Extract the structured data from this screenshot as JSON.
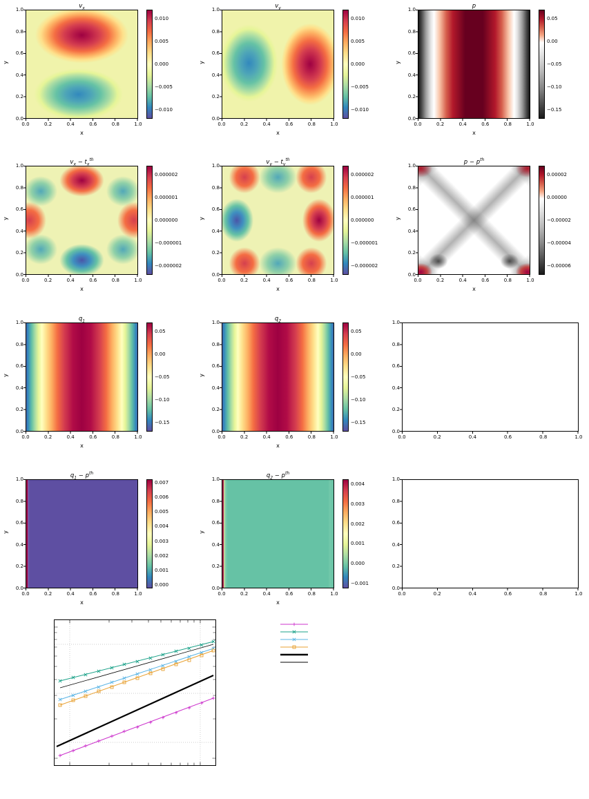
{
  "figure": {
    "description": "grid of matplotlib-style panels: velocity, pressure and auxiliary fields with colorbars, two empty axes, and a log-log convergence plot with legend",
    "background": "#ffffff"
  },
  "axis": {
    "xlabel": "x",
    "ylabel": "y",
    "xticks": [
      "0.0",
      "0.2",
      "0.4",
      "0.6",
      "0.8",
      "1.0"
    ],
    "yticks": [
      "1.0",
      "0.8",
      "0.6",
      "0.4",
      "0.2",
      "0.0"
    ]
  },
  "plots": [
    {
      "name": "vx",
      "title": {
        "p0": "v",
        "p1": "x"
      },
      "cbar_ticks": [
        "0.010",
        "0.005",
        "0.000",
        "−0.005",
        "−0.010"
      ],
      "bg": "background:radial-gradient(ellipse 42% 26% at 50% 23%, #9e0142 0%, #b81b49 18%, #d53e4f 38%, #f46d43 58%, #fdae61 74%, #fee08b 88%, rgba(254,224,139,0) 100%),radial-gradient(ellipse 40% 24% at 47% 78%, #3288bd 0%, #4da4b8 28%, #66c2a5 50%, #abdda4 72%, #e6f598 88%, rgba(230,245,152,0) 100%),linear-gradient(#f0f3ab,#f0f3ab)",
      "cbar_bg": "background:linear-gradient(180deg, #9e0142 0%, #d53e4f 10%, #f46d43 20%, #fdae61 30%, #fee08b 40%, #ffffbf 50%, #e6f598 60%, #abdda4 70%, #66c2a5 80%, #3288bd 90%, #5e4fa2 100%)"
    },
    {
      "name": "vy",
      "title": {
        "p0": "v",
        "p1": "y"
      },
      "cbar_ticks": [
        "0.010",
        "0.005",
        "0.000",
        "−0.005",
        "−0.010"
      ],
      "bg": "background:radial-gradient(ellipse 26% 36% at 24% 49%, #3288bd 0%, #4da4b8 28%, #66c2a5 52%, #abdda4 72%, #e6f598 88%, rgba(230,245,152,0) 100%),radial-gradient(ellipse 26% 38% at 79% 50%, #9e0142 0%, #b81b49 18%, #d53e4f 38%, #f46d43 58%, #fdae61 76%, #fee08b 90%, rgba(254,224,139,0) 100%),linear-gradient(#f0f3ab,#f0f3ab)",
      "cbar_bg": "background:linear-gradient(180deg, #9e0142 0%, #d53e4f 10%, #f46d43 20%, #fdae61 30%, #fee08b 40%, #ffffbf 50%, #e6f598 60%, #abdda4 70%, #66c2a5 80%, #3288bd 90%, #5e4fa2 100%)"
    },
    {
      "name": "p",
      "title": {
        "p0": "p"
      },
      "cbar_ticks": [
        "0.05",
        "0.00",
        "−0.05",
        "−0.10",
        "−0.15"
      ],
      "bg": "background:linear-gradient(90deg, #151515 0%, #4d4d4d 3%, #999999 6.5%, #e2e2e2 11%, #ffffff 14%, #f8c4a8 19%, #d6604d 25%, #b2182b 31%, #67001f 42%, #67001f 58%, #b2182b 69%, #d6604d 75%, #f8c4a8 81%, #ffffff 86%, #e2e2e2 89%, #999999 93.5%, #4d4d4d 97%, #151515 100%)",
      "cbar_bg": "background:linear-gradient(180deg, #67001f 0%, #b2182b 8%, #d6604d 16%, #f4a582 23%, #ffffff 30%, #e0e0e0 42%, #bababa 56%, #878787 72%, #4d4d4d 87%, #1a1a1a 100%)"
    },
    {
      "name": "vx-error",
      "title": {
        "p0": "v",
        "p1": "x",
        "p2": " − ",
        "p3": "t",
        "p4": "x",
        "p5": "th"
      },
      "cbar_ticks": [
        "0.000002",
        "0.000001",
        "0.000000",
        "−0.000001",
        "−0.000002"
      ],
      "bg": "background:radial-gradient(ellipse 20% 15% at 50% 13%, #9e0142 0%, #d53e4f 42%, #f46d43 66%, rgba(253,174,97,0) 100%),radial-gradient(ellipse 20% 15% at 50% 87%, #4a55a8 0%, #3f8fc0 38%, #66c2a5 68%, rgba(171,221,164,0) 100%),radial-gradient(ellipse 15% 17% at 3% 50%, #d5404e 0%, #f46d43 55%, rgba(253,174,97,0) 100%),radial-gradient(ellipse 15% 17% at 97% 50%, #d5404e 0%, #f46d43 55%, rgba(253,174,97,0) 100%),radial-gradient(ellipse 15% 14% at 13% 23%, #52a8b8 0%, #8fd0a8 55%, rgba(171,221,164,0) 100%),radial-gradient(ellipse 15% 14% at 87% 23%, #52a8b8 0%, #8fd0a8 55%, rgba(171,221,164,0) 100%),radial-gradient(ellipse 15% 14% at 13% 77%, #52a8b8 0%, #8fd0a8 55%, rgba(171,221,164,0) 100%),radial-gradient(ellipse 15% 14% at 87% 77%, #52a8b8 0%, #8fd0a8 55%, rgba(171,221,164,0) 100%),linear-gradient(#eef2b4,#eef2b4)",
      "cbar_bg": "background:linear-gradient(180deg, #9e0142 0%, #d53e4f 10%, #f46d43 20%, #fdae61 30%, #fee08b 40%, #ffffbf 50%, #e6f598 60%, #abdda4 70%, #66c2a5 80%, #3288bd 90%, #5e4fa2 100%)"
    },
    {
      "name": "vy-error",
      "title": {
        "p0": "v",
        "p1": "y",
        "p2": " − ",
        "p3": "t",
        "p4": "y",
        "p5": "th"
      },
      "cbar_ticks": [
        "0.000002",
        "0.000001",
        "0.000000",
        "−0.000001",
        "−0.000002"
      ],
      "bg": "background:radial-gradient(ellipse 15% 20% at 13% 50%, #4a55a8 0%, #3f8fc0 38%, #66c2a5 68%, rgba(171,221,164,0) 100%),radial-gradient(ellipse 15% 20% at 87% 50%, #9e0142 0%, #d53e4f 42%, #f46d43 66%, rgba(253,174,97,0) 100%),radial-gradient(ellipse 17% 15% at 50% 10%, #52a8b8 0%, #8fd0a8 55%, rgba(171,221,164,0) 100%),radial-gradient(ellipse 17% 15% at 50% 90%, #52a8b8 0%, #8fd0a8 55%, rgba(171,221,164,0) 100%),radial-gradient(ellipse 14% 15% at 20% 10%, #d5404e 0%, #f46d43 55%, rgba(253,174,97,0) 100%),radial-gradient(ellipse 14% 15% at 80% 10%, #d5404e 0%, #f46d43 55%, rgba(253,174,97,0) 100%),radial-gradient(ellipse 14% 15% at 20% 90%, #d5404e 0%, #f46d43 55%, rgba(253,174,97,0) 100%),radial-gradient(ellipse 14% 15% at 80% 90%, #d5404e 0%, #f46d43 55%, rgba(253,174,97,0) 100%),linear-gradient(#eef2b4,#eef2b4)",
      "cbar_bg": "background:linear-gradient(180deg, #9e0142 0%, #d53e4f 10%, #f46d43 20%, #fdae61 30%, #fee08b 40%, #ffffbf 50%, #e6f598 60%, #abdda4 70%, #66c2a5 80%, #3288bd 90%, #5e4fa2 100%)"
    },
    {
      "name": "p-error",
      "title": {
        "p0": "p",
        "p2": " − ",
        "p3": "p",
        "p5": "th"
      },
      "cbar_ticks": [
        "0.00002",
        "0.00000",
        "−0.00002",
        "−0.00004",
        "−0.00006"
      ],
      "bg": "background:radial-gradient(ellipse 14% 11% at 2% 98%, #9e0142 0%, #c3403f 40%, rgba(195,64,63,0) 75%),radial-gradient(ellipse 14% 11% at 98% 98%, #9e0142 0%, #c3403f 40%, rgba(195,64,63,0) 75%),radial-gradient(ellipse 14% 11% at 2% 2%, #b2182b 0%, rgba(195,64,63,0) 75%),radial-gradient(ellipse 14% 11% at 98% 2%, #b2182b 0%, rgba(195,64,63,0) 75%),radial-gradient(ellipse 12% 10% at 18% 88%, rgba(30,30,30,0.75) 0%, rgba(30,30,30,0) 70%),radial-gradient(ellipse 12% 10% at 82% 88%, rgba(30,30,30,0.75) 0%, rgba(30,30,30,0) 70%),linear-gradient(45deg, rgba(70,70,70,0.5) 0%, rgba(70,70,70,0) 10%, rgba(70,70,70,0) 43%, rgba(70,70,70,0.42) 50%, rgba(70,70,70,0) 57%, rgba(70,70,70,0) 90%, rgba(70,70,70,0.5) 100%),linear-gradient(135deg, rgba(70,70,70,0.5) 0%, rgba(70,70,70,0) 10%, rgba(70,70,70,0) 43%, rgba(70,70,70,0.42) 50%, rgba(70,70,70,0) 57%, rgba(70,70,70,0) 90%, rgba(70,70,70,0.5) 100%),linear-gradient(#ffffff,#ffffff)",
      "cbar_bg": "background:linear-gradient(180deg, #67001f 0%, #b2182b 8%, #d6604d 16%, #f4a582 23%, #ffffff 30%, #e0e0e0 42%, #bababa 56%, #878787 72%, #4d4d4d 87%, #1a1a1a 100%)"
    },
    {
      "name": "q1",
      "title": {
        "p0": "q",
        "p1": "1"
      },
      "cbar_ticks": [
        "0.05",
        "0.00",
        "−0.05",
        "−0.10",
        "−0.15"
      ],
      "bg": "background:linear-gradient(90deg, #4468ae 0%, #3288bd 1.5%, #66c2a5 5%, #abdda4 8%, #e6f598 11%, #ffffbf 14%, #fee08b 18%, #fdae61 23%, #f46d43 28%, #d53e4f 34%, #b10c47 42%, #9e0142 50%, #b10c47 58%, #d53e4f 66%, #f46d43 72%, #fdae61 77%, #fee08b 82%, #ffffbf 86%, #e6f598 89%, #abdda4 92%, #66c2a5 95%, #3288bd 98.5%, #4468ae 100%)",
      "cbar_bg": "background:linear-gradient(180deg, #9e0142 0%, #d53e4f 10%, #f46d43 20%, #fdae61 30%, #fee08b 40%, #ffffbf 50%, #e6f598 60%, #abdda4 70%, #66c2a5 80%, #3288bd 90%, #5e4fa2 100%)"
    },
    {
      "name": "q2",
      "title": {
        "p0": "q",
        "p1": "2"
      },
      "cbar_ticks": [
        "0.05",
        "0.00",
        "−0.05",
        "−0.10",
        "−0.15"
      ],
      "bg": "background:linear-gradient(90deg, #4468ae 0%, #3288bd 1.5%, #66c2a5 5%, #abdda4 8%, #e6f598 11%, #ffffbf 14%, #fee08b 18%, #fdae61 23%, #f46d43 28%, #d53e4f 34%, #b10c47 42%, #9e0142 50%, #b10c47 58%, #d53e4f 66%, #f46d43 72%, #fdae61 77%, #fee08b 82%, #ffffbf 86%, #e6f598 89%, #abdda4 92%, #66c2a5 95%, #3288bd 98.5%, #4468ae 100%)",
      "cbar_bg": "background:linear-gradient(180deg, #9e0142 0%, #d53e4f 10%, #f46d43 20%, #fdae61 30%, #fee08b 40%, #ffffbf 50%, #e6f598 60%, #abdda4 70%, #66c2a5 80%, #3288bd 90%, #5e4fa2 100%)"
    },
    {
      "name": "q1-error",
      "title": {
        "p0": "q",
        "p1": "1",
        "p2": " − ",
        "p3": "p",
        "p5": "th"
      },
      "cbar_ticks": [
        "0.007",
        "0.006",
        "0.005",
        "0.004",
        "0.003",
        "0.002",
        "0.001",
        "0.000"
      ],
      "bg": "background:linear-gradient(90deg, #9e0142 0%, #9e0142 1%, #7a63b0 1.8%, #5e4fa2 3%, #5e4fa2 100%)",
      "cbar_bg": "background:linear-gradient(180deg, #9e0142 0%, #d53e4f 10%, #f46d43 20%, #fdae61 30%, #fee08b 40%, #ffffbf 50%, #e6f598 60%, #abdda4 70%, #66c2a5 80%, #3288bd 90%, #5e4fa2 100%)"
    },
    {
      "name": "q2-error",
      "title": {
        "p0": "q",
        "p1": "2",
        "p2": " − ",
        "p3": "p",
        "p5": "th"
      },
      "cbar_ticks": [
        "0.004",
        "0.003",
        "0.002",
        "0.001",
        "0.000",
        "−0.001"
      ],
      "bg": "background:linear-gradient(90deg, #9e0142 0%, #9e0142 0.8%, #cfe99e 1.6%, #7ecbad 3%, #66c2a5 5%, #66c2a5 95%, #74c9ab 97%, #66c2a5 100%)",
      "cbar_bg": "background:linear-gradient(180deg, #9e0142 0%, #d53e4f 10%, #f46d43 20%, #fdae61 30%, #fee08b 40%, #ffffbf 50%, #e6f598 60%, #abdda4 70%, #66c2a5 80%, #3288bd 90%, #5e4fa2 100%)"
    }
  ],
  "empty_panels": {
    "count": 2,
    "note": "axes frames with 0.0–1.0 ticks on both axes, no data"
  },
  "chart_data": [
    {
      "type": "heatmap",
      "title": "v_x",
      "xlabel": "x",
      "ylabel": "y",
      "xrange": [
        0,
        1
      ],
      "yrange": [
        0,
        1
      ],
      "colormap": "Spectral",
      "colorbar_ticks": [
        0.01,
        0.005,
        0.0,
        -0.005,
        -0.01
      ],
      "features": "positive (dark red) lobe centered near (0.5, 0.75); negative (blue) lobe near (0.47, 0.22); background near zero (pale yellow)"
    },
    {
      "type": "heatmap",
      "title": "v_y",
      "xlabel": "x",
      "ylabel": "y",
      "xrange": [
        0,
        1
      ],
      "yrange": [
        0,
        1
      ],
      "colormap": "Spectral",
      "colorbar_ticks": [
        0.01,
        0.005,
        0.0,
        -0.005,
        -0.01
      ],
      "features": "negative (blue) lobe near (0.25, 0.5); positive (dark red) lobe near (0.78, 0.5); pale yellow background"
    },
    {
      "type": "heatmap",
      "title": "p",
      "xlabel": "x",
      "ylabel": "y",
      "xrange": [
        0,
        1
      ],
      "yrange": [
        0,
        1
      ],
      "colormap": "RdGy",
      "colorbar_ticks": [
        0.05,
        0.0,
        -0.05,
        -0.1,
        -0.15
      ],
      "features": "vertical bands independent of y: black at x=0 and x=1 edges, white near x≈0.13 and x≈0.87, broad dark red plateau across the center"
    },
    {
      "type": "heatmap",
      "title": "v_x - t_x^{th}",
      "xlabel": "x",
      "ylabel": "y",
      "xrange": [
        0,
        1
      ],
      "yrange": [
        0,
        1
      ],
      "colormap": "Spectral",
      "colorbar_ticks": [
        2e-06,
        1e-06,
        0,
        -1e-06,
        -2e-06
      ],
      "features": "3×3 alternating error lobes: dark red top-center, dark blue bottom-center, orange-red mid-left and mid-right, teal lobes toward the four corners"
    },
    {
      "type": "heatmap",
      "title": "v_y - t_y^{th}",
      "xlabel": "x",
      "ylabel": "y",
      "xrange": [
        0,
        1
      ],
      "yrange": [
        0,
        1
      ],
      "colormap": "Spectral",
      "colorbar_ticks": [
        2e-06,
        1e-06,
        0,
        -1e-06,
        -2e-06
      ],
      "features": "transposed pattern: dark blue mid-left, dark red mid-right, teal top-center and bottom-center, orange-red lobes at the corners"
    },
    {
      "type": "heatmap",
      "title": "p - p^{th}",
      "xlabel": "x",
      "ylabel": "y",
      "xrange": [
        0,
        1
      ],
      "yrange": [
        0,
        1
      ],
      "colormap": "RdGy",
      "colorbar_ticks": [
        2e-05,
        0,
        -2e-05,
        -4e-05,
        -6e-05
      ],
      "features": "white field with a dark gray X along the diagonals, red lobes at the four corners, darker spots near the bottom corners"
    },
    {
      "type": "heatmap",
      "title": "q_1",
      "xlabel": "x",
      "ylabel": "y",
      "xrange": [
        0,
        1
      ],
      "yrange": [
        0,
        1
      ],
      "colormap": "Spectral",
      "colorbar_ticks": [
        0.05,
        0.0,
        -0.05,
        -0.1,
        -0.15
      ],
      "features": "vertical bands: blue at edges through green/yellow/orange to a broad dark red center"
    },
    {
      "type": "heatmap",
      "title": "q_2",
      "xlabel": "x",
      "ylabel": "y",
      "xrange": [
        0,
        1
      ],
      "yrange": [
        0,
        1
      ],
      "colormap": "Spectral",
      "colorbar_ticks": [
        0.05,
        0.0,
        -0.05,
        -0.1,
        -0.15
      ],
      "features": "vertical bands: blue at edges through green/yellow/orange to a broad dark red center"
    },
    {
      "type": "heatmap",
      "title": "q_1 - p^{th}",
      "xlabel": "x",
      "ylabel": "y",
      "xrange": [
        0,
        1
      ],
      "yrange": [
        0,
        1
      ],
      "colormap": "Spectral",
      "colorbar_ticks": [
        0.007,
        0.006,
        0.005,
        0.004,
        0.003,
        0.002,
        0.001,
        0.0
      ],
      "features": "uniform purple field (value near 0) with a thin dark red stripe at x=0"
    },
    {
      "type": "heatmap",
      "title": "q_2 - p^{th}",
      "xlabel": "x",
      "ylabel": "y",
      "xrange": [
        0,
        1
      ],
      "yrange": [
        0,
        1
      ],
      "colormap": "Spectral",
      "colorbar_ticks": [
        0.004,
        0.003,
        0.002,
        0.001,
        0.0,
        -0.001
      ],
      "features": "uniform teal-green field with a thin red stripe at x=0 and faint lighter bands near both edges"
    },
    {
      "type": "line",
      "title": "",
      "xscale": "log",
      "yscale": "log",
      "grid": "dotted",
      "tick_labels_visible": false,
      "series": [
        {
          "color": "#cc33cc",
          "marker": "+",
          "description": "lowest straight ascending line with plus markers"
        },
        {
          "color": "#1aa188",
          "marker": "x",
          "description": "topmost straight ascending line with x markers"
        },
        {
          "color": "#5ab4e5",
          "marker": "x",
          "description": "third-from-top ascending line with x markers"
        },
        {
          "color": "#e8a030",
          "marker": "s",
          "description": "fourth-from-top ascending line with square markers"
        },
        {
          "color": "#000000",
          "marker": "none",
          "linewidth": "thick",
          "description": "thick black reference line, steeper, lower middle"
        },
        {
          "color": "#000000",
          "marker": "none",
          "linewidth": "thin",
          "description": "thin black reference line, second from top"
        }
      ],
      "legend": {
        "position": "outside right",
        "entries": 6,
        "labels_legible": false
      }
    }
  ]
}
